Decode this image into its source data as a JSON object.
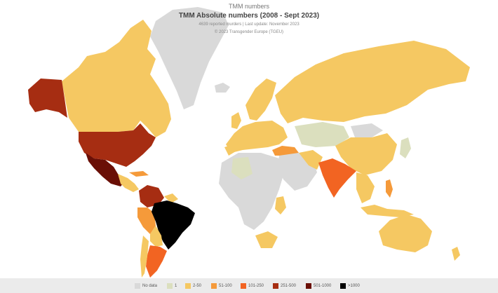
{
  "header": {
    "app_title": "TMM numbers",
    "title": "TMM Absolute numbers (2008 - Sept 2023)",
    "subtitle": "4639 reported murders | Last update: November 2023",
    "credit": "© 2023 Transgender Europe (TGEU)"
  },
  "legend": [
    {
      "label": "No data",
      "color": "#d9d9d9"
    },
    {
      "label": "1",
      "color": "#dbdfbe"
    },
    {
      "label": "2-50",
      "color": "#f5c862"
    },
    {
      "label": "51-100",
      "color": "#f59a3a"
    },
    {
      "label": "101-250",
      "color": "#f26422"
    },
    {
      "label": "251-500",
      "color": "#a62d12"
    },
    {
      "label": "501-1000",
      "color": "#6a0f06"
    },
    {
      "label": ">1000",
      "color": "#000000"
    }
  ],
  "chart_data": {
    "type": "choropleth",
    "title": "TMM Absolute numbers (2008 - Sept 2023)",
    "bins": [
      "No data",
      "1",
      "2-50",
      "51-100",
      "101-250",
      "251-500",
      "501-1000",
      ">1000"
    ],
    "regions": [
      {
        "region": "Greenland",
        "bin": "No data"
      },
      {
        "region": "Canada",
        "bin": "2-50"
      },
      {
        "region": "Alaska (United States)",
        "bin": "251-500"
      },
      {
        "region": "United States",
        "bin": "251-500"
      },
      {
        "region": "Mexico",
        "bin": "501-1000"
      },
      {
        "region": "Central America",
        "bin": "2-50"
      },
      {
        "region": "Colombia",
        "bin": "251-500"
      },
      {
        "region": "Venezuela",
        "bin": "51-100"
      },
      {
        "region": "Peru",
        "bin": "51-100"
      },
      {
        "region": "Brazil",
        "bin": ">1000"
      },
      {
        "region": "Argentina",
        "bin": "101-250"
      },
      {
        "region": "Chile",
        "bin": "2-50"
      },
      {
        "region": "Russia",
        "bin": "2-50"
      },
      {
        "region": "Europe",
        "bin": "2-50"
      },
      {
        "region": "Turkey",
        "bin": "51-100"
      },
      {
        "region": "Central Asia",
        "bin": "1"
      },
      {
        "region": "China",
        "bin": "2-50"
      },
      {
        "region": "India",
        "bin": "101-250"
      },
      {
        "region": "Philippines",
        "bin": "51-100"
      },
      {
        "region": "Southeast Asia",
        "bin": "2-50"
      },
      {
        "region": "Australia",
        "bin": "2-50"
      },
      {
        "region": "New Zealand",
        "bin": "2-50"
      },
      {
        "region": "North Africa",
        "bin": "No data"
      },
      {
        "region": "Algeria",
        "bin": "1"
      },
      {
        "region": "South Africa",
        "bin": "2-50"
      },
      {
        "region": "Middle East",
        "bin": "No data"
      }
    ]
  }
}
